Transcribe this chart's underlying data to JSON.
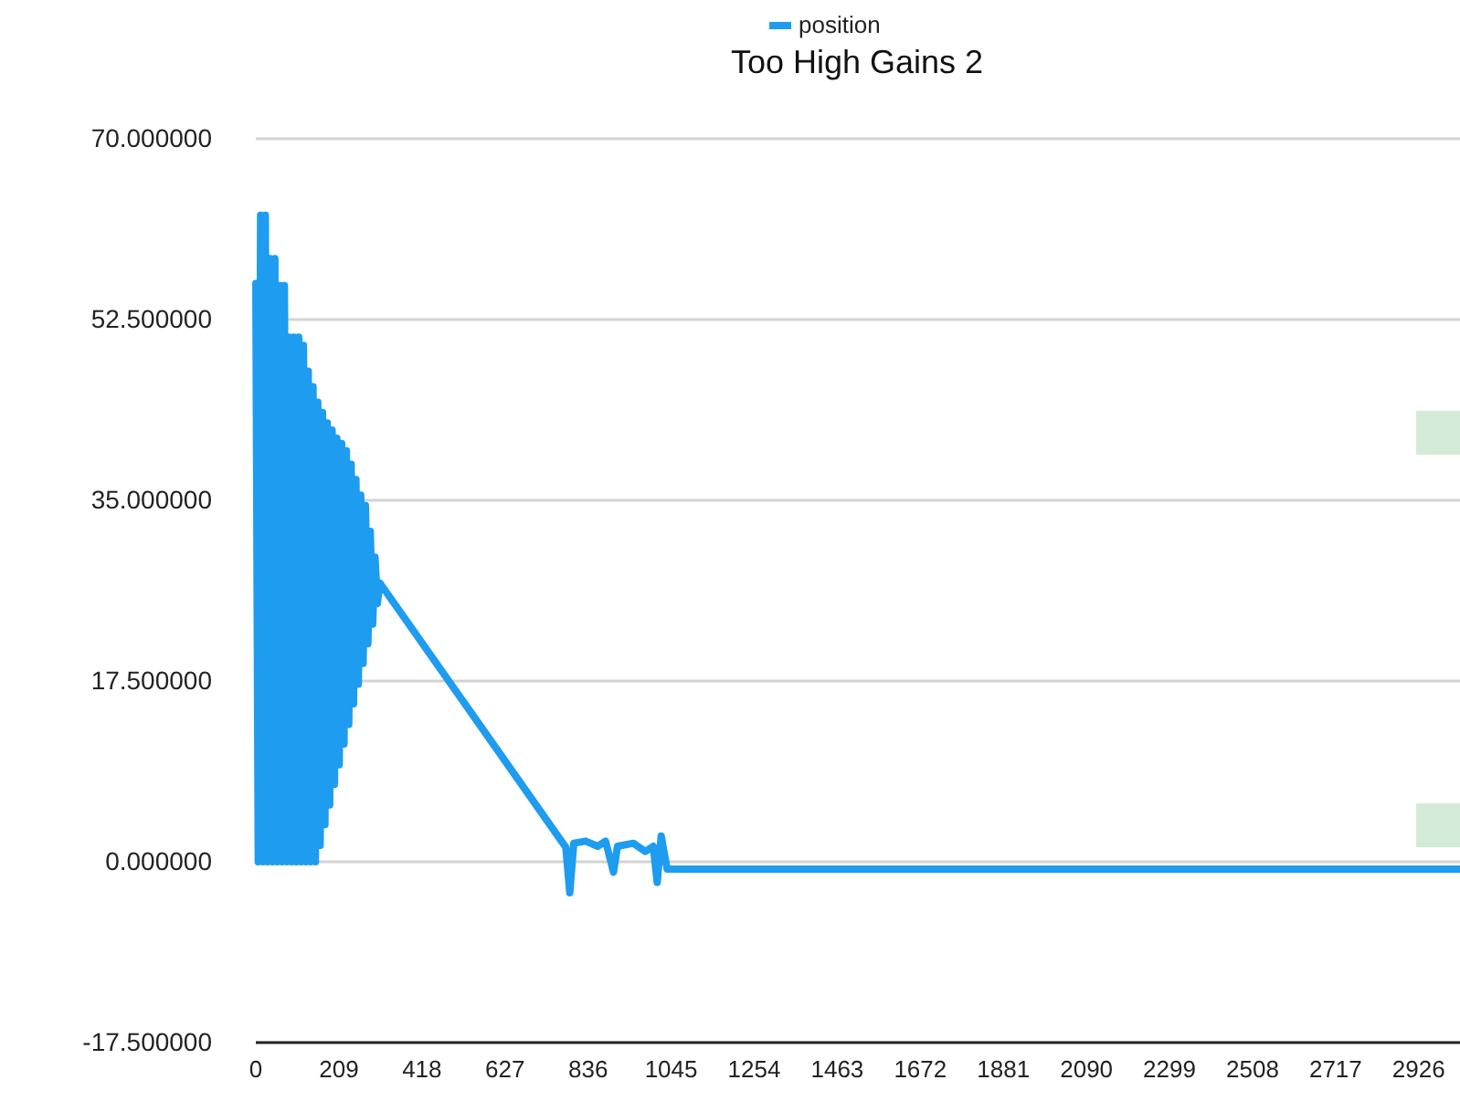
{
  "chart_data": {
    "type": "line",
    "title": "Too High Gains 2",
    "legend": "top",
    "grid": "y",
    "marker": "none",
    "line_style": "solid",
    "xlim": [
      0,
      3030
    ],
    "xticks": [
      0,
      209,
      418,
      627,
      836,
      1045,
      1254,
      1463,
      1672,
      1881,
      2090,
      2299,
      2508,
      2717,
      2926
    ],
    "ylim": [
      -17.5,
      70
    ],
    "yticks": [
      {
        "value": -17.5,
        "label": "-17.500000"
      },
      {
        "value": 0,
        "label": "0.000000"
      },
      {
        "value": 17.5,
        "label": "17.500000"
      },
      {
        "value": 35,
        "label": "35.000000"
      },
      {
        "value": 52.5,
        "label": "52.500000"
      },
      {
        "value": 70,
        "label": "70.000000"
      }
    ],
    "series": [
      {
        "name": "position",
        "color": "#1e9cf0",
        "x": [
          0,
          6,
          12,
          18,
          24,
          30,
          36,
          42,
          48,
          54,
          60,
          66,
          72,
          78,
          84,
          90,
          96,
          102,
          108,
          114,
          120,
          126,
          132,
          138,
          144,
          150,
          156,
          162,
          168,
          174,
          180,
          186,
          192,
          198,
          204,
          210,
          216,
          222,
          228,
          234,
          240,
          246,
          252,
          258,
          264,
          270,
          276,
          282,
          288,
          294,
          300,
          306,
          312,
          780,
          790,
          800,
          830,
          860,
          880,
          900,
          910,
          950,
          980,
          1000,
          1010,
          1020,
          1035,
          3030
        ],
        "values": [
          56,
          0,
          62.6,
          0,
          62.6,
          0,
          58.4,
          0,
          58.4,
          0,
          55.8,
          0,
          55.8,
          0,
          50.8,
          0,
          50.8,
          0,
          50.8,
          0,
          50,
          0,
          47.5,
          0,
          46,
          0,
          44.5,
          1.6,
          43.5,
          3.6,
          42.5,
          5.5,
          41.8,
          7.5,
          41,
          9.4,
          40.5,
          11.4,
          39.8,
          13.3,
          38.5,
          15.3,
          37,
          17.2,
          35.5,
          19.2,
          34.5,
          21.1,
          32,
          23,
          29.5,
          25,
          27,
          1.4,
          -3,
          1.8,
          2,
          1.5,
          2,
          -1,
          1.5,
          1.8,
          1,
          1.5,
          -2,
          2.5,
          -0.7,
          -0.7
        ]
      }
    ]
  }
}
